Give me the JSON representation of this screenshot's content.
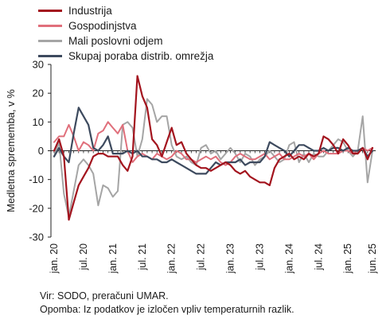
{
  "chart_data": {
    "type": "line",
    "ylabel": "Medletna sprememba, v %",
    "ylim": [
      -30,
      30
    ],
    "yticks": [
      -30,
      -20,
      -10,
      0,
      10,
      20,
      30
    ],
    "x_period": "monthly, jan. 2020 – jun. 2025",
    "xtick_labels": [
      "jan. 20",
      "jul. 20",
      "jan. 21",
      "jul. 21",
      "jan. 22",
      "jul. 22",
      "jan. 23",
      "jul. 23",
      "jan. 24",
      "jul. 24",
      "jan. 25",
      "jun. 25"
    ],
    "grid": false,
    "legend_position": "top-left",
    "series": [
      {
        "name": "Industrija",
        "color": "#a3141e",
        "values": [
          0,
          4,
          -2,
          -24,
          -18,
          -12,
          -9,
          -6,
          -2,
          -1,
          -1,
          -2,
          -2,
          -2,
          -5,
          -7,
          -2,
          26,
          19,
          15,
          4,
          2,
          -2,
          3,
          8,
          2,
          3,
          -1,
          -3,
          -5,
          -6,
          -6,
          -7,
          -6,
          -5,
          -4,
          -5,
          -7,
          -8,
          -7,
          -9,
          -10,
          -11,
          -11,
          -12,
          -6,
          -3,
          -2,
          -1,
          -3,
          -2,
          -3,
          -1,
          -2,
          -1,
          5,
          4,
          2,
          -1,
          4,
          2,
          -1,
          -1,
          1,
          -3,
          1
        ]
      },
      {
        "name": "Gospodinjstva",
        "color": "#e06f7b",
        "values": [
          3,
          5,
          5,
          9,
          5,
          0,
          3,
          2,
          0,
          6,
          7,
          10,
          8,
          6,
          9,
          0,
          -4,
          -2,
          -1,
          -2,
          -3,
          -1,
          -2,
          -3,
          -2,
          0,
          -1,
          -3,
          -3,
          -4,
          -3,
          -2,
          -3,
          -2,
          -4,
          -5,
          -4,
          -2,
          -1,
          -2,
          -3,
          -3,
          -2,
          -1,
          -3,
          -2,
          -1,
          -3,
          -3,
          -2,
          -1,
          -2,
          -1,
          -3,
          -1,
          0,
          -1,
          -1,
          -1,
          0,
          0,
          -1,
          0,
          1,
          0,
          1
        ]
      },
      {
        "name": "Mali poslovni odjem",
        "color": "#a5a5a5",
        "values": [
          -2,
          3,
          -15,
          -23,
          -14,
          -5,
          -3,
          -5,
          -8,
          -19,
          -12,
          -13,
          -16,
          -14,
          9,
          10,
          8,
          -2,
          4,
          18,
          16,
          10,
          12,
          12,
          2,
          -2,
          -3,
          -2,
          -4,
          -5,
          1,
          2,
          -1,
          0,
          -3,
          -1,
          1,
          -1,
          -4,
          -1,
          -2,
          -5,
          -3,
          -2,
          0,
          -2,
          -4,
          -3,
          2,
          3,
          -4,
          -1,
          -4,
          -1,
          -2,
          -2,
          0,
          2,
          4,
          3,
          0,
          -2,
          0,
          12,
          -11,
          0
        ]
      },
      {
        "name": "Skupaj poraba distrib. omrežja",
        "color": "#3d4a5e",
        "values": [
          -2,
          1,
          -2,
          -4,
          6,
          15,
          12,
          9,
          1,
          0,
          2,
          5,
          -1,
          -1,
          -1,
          0,
          -1,
          0,
          -2,
          -2,
          -3,
          -3,
          -4,
          -4,
          -3,
          -4,
          -5,
          -6,
          -7,
          -8,
          -8,
          -8,
          -6,
          -4,
          -5,
          -4,
          -4,
          -4,
          -3,
          -5,
          -4,
          -4,
          -4,
          -2,
          3,
          2,
          1,
          0,
          -2,
          0,
          2,
          2,
          1,
          0,
          0,
          1,
          0,
          1,
          1,
          0,
          1,
          0,
          0,
          1,
          -2,
          0
        ]
      }
    ]
  },
  "notes": {
    "source": "Vir: SODO, preračuni UMAR.",
    "remark": "Opomba: Iz podatkov je izločen vpliv temperaturnih razlik."
  }
}
